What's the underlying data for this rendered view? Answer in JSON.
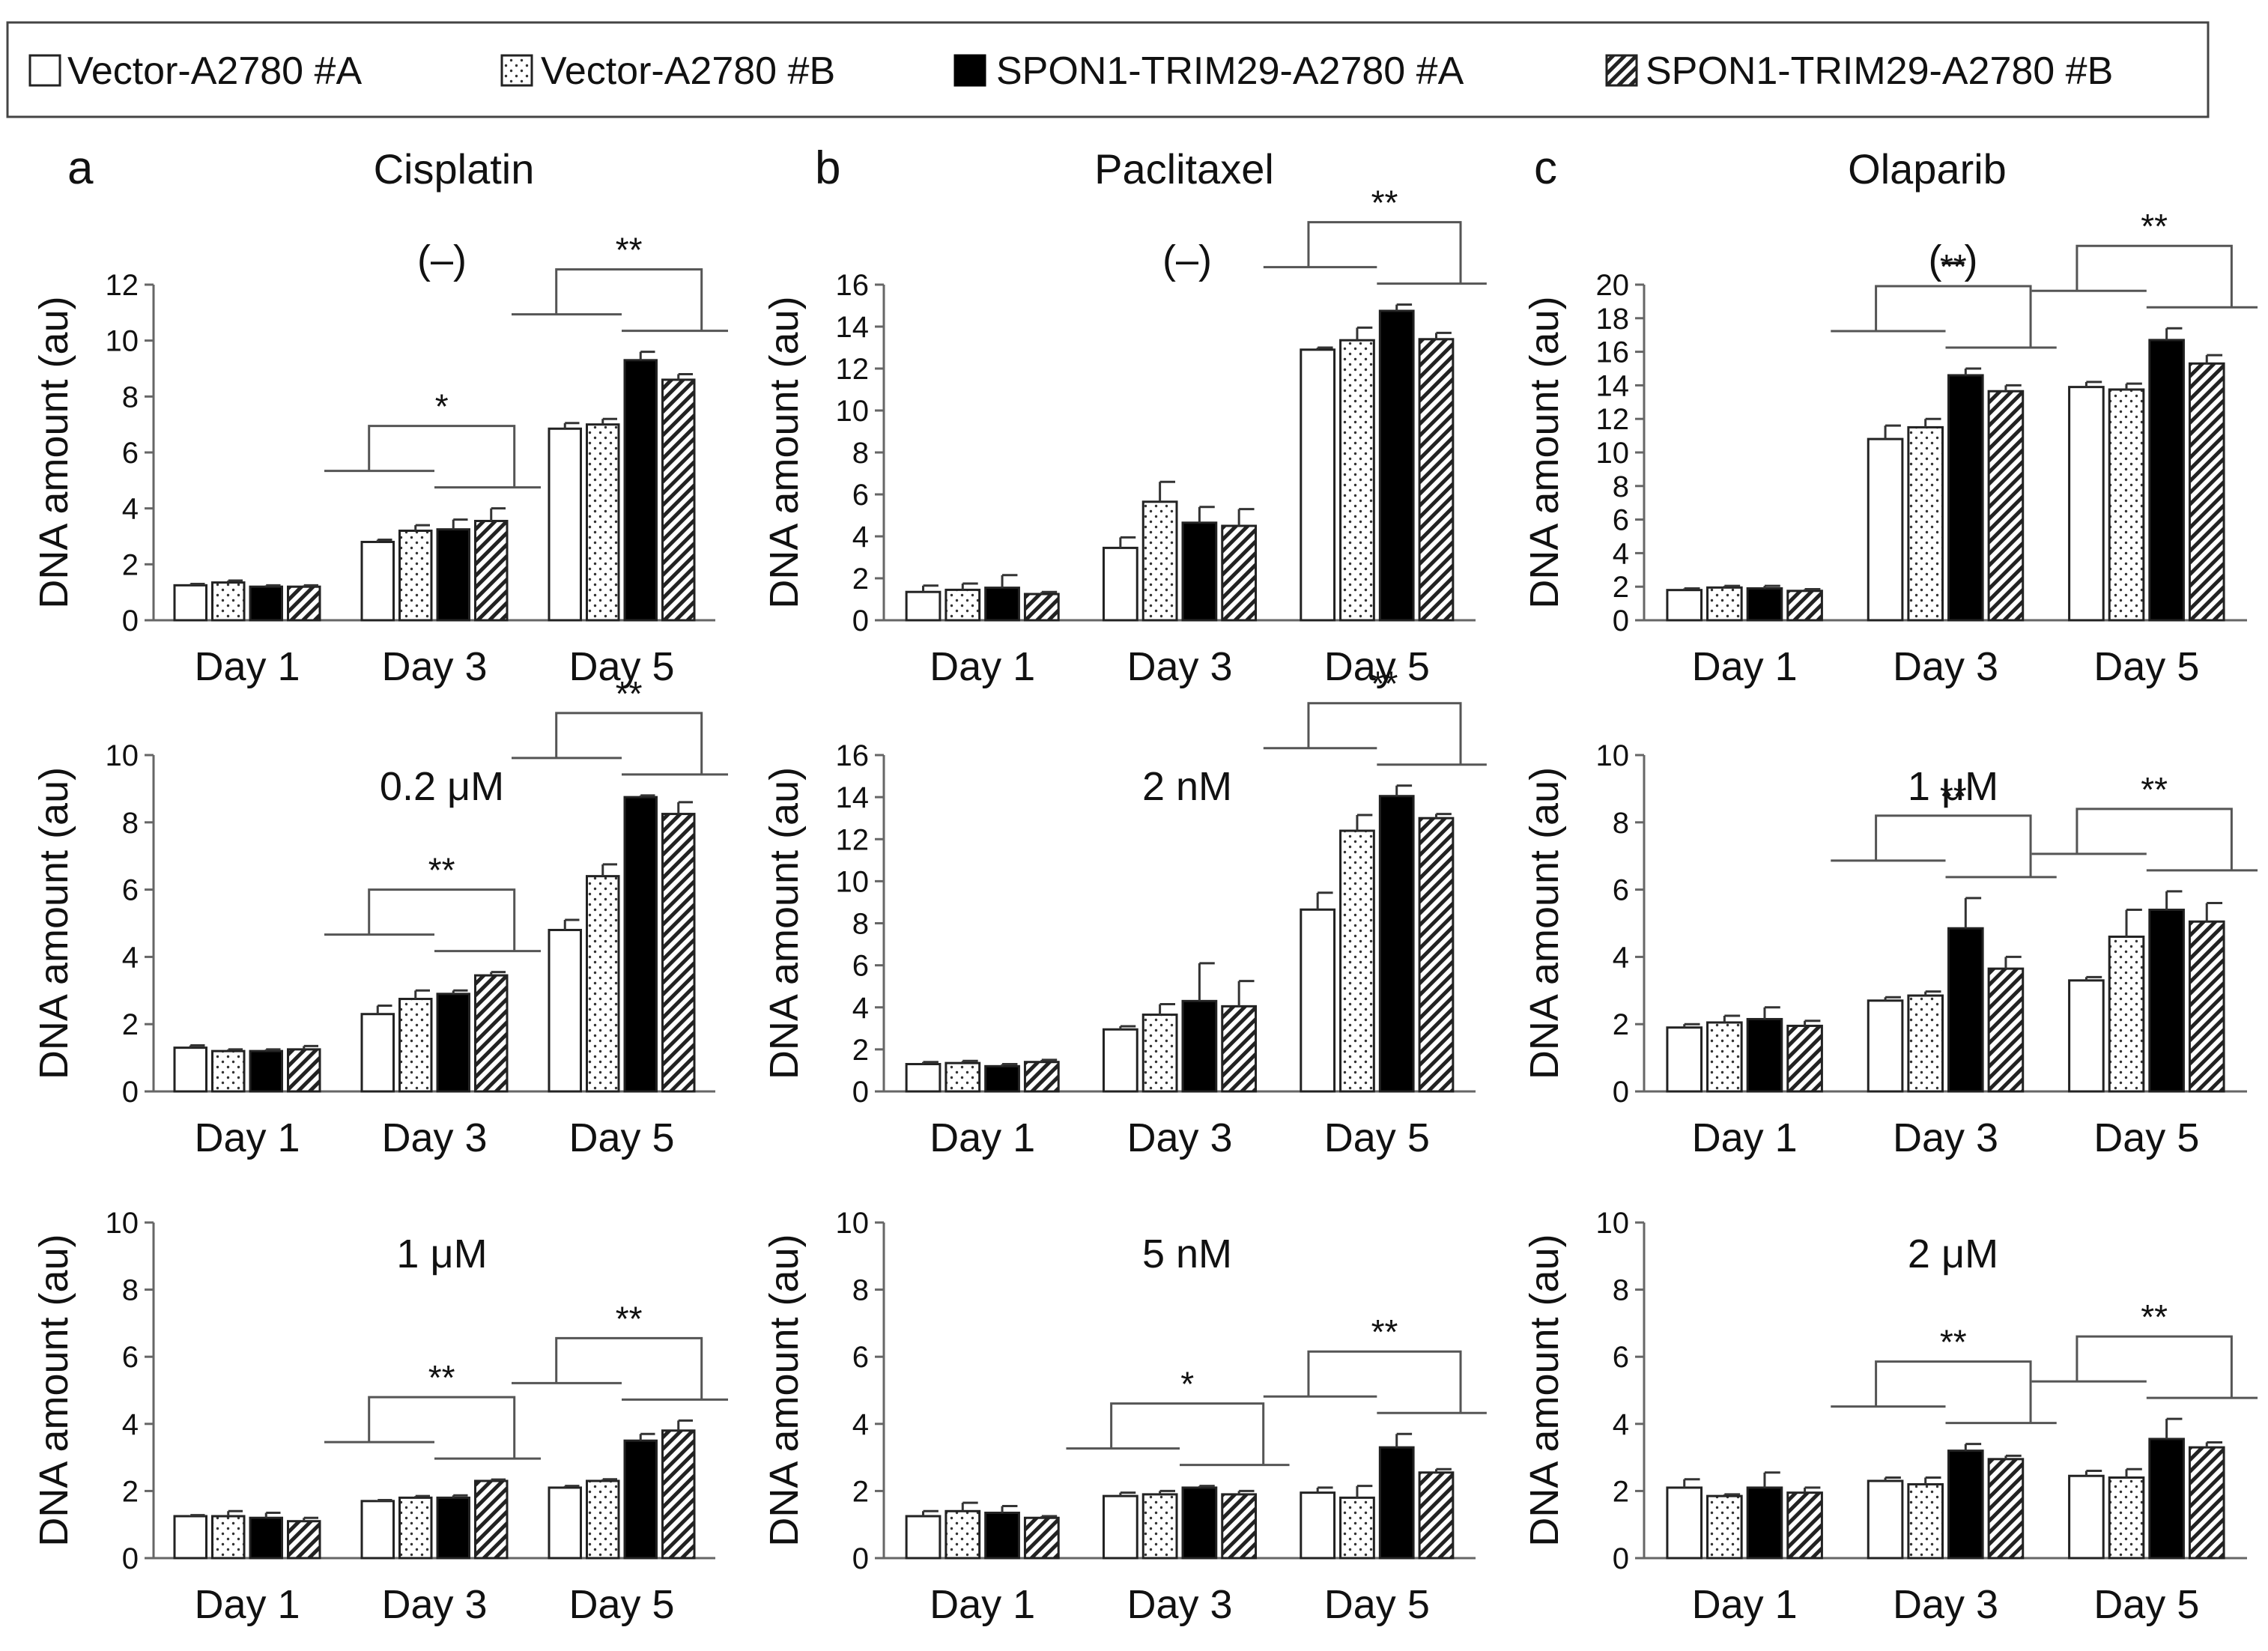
{
  "legend": {
    "items": [
      {
        "label": "Vector-A2780 #A",
        "pattern": "white"
      },
      {
        "label": "Vector-A2780 #B",
        "pattern": "dots"
      },
      {
        "label": "SPON1-TRIM29-A2780 #A",
        "pattern": "black"
      },
      {
        "label": "SPON1-TRIM29-A2780 #B",
        "pattern": "hatch"
      }
    ]
  },
  "columns": [
    {
      "letter": "a",
      "drug": "Cisplatin"
    },
    {
      "letter": "b",
      "drug": "Paclitaxel"
    },
    {
      "letter": "c",
      "drug": "Olaparib"
    }
  ],
  "ylabel": "DNA amount (au)",
  "categories": [
    "Day 1",
    "Day 3",
    "Day 5"
  ],
  "colors": {
    "bar_black": "#000000",
    "bar_white": "#ffffff",
    "line": "#555555",
    "axis": "#666666"
  },
  "chart_data": [
    {
      "type": "bar",
      "col": 0,
      "row": 0,
      "title": "(–)",
      "ylim": [
        0,
        12
      ],
      "ystep": 2,
      "series": [
        {
          "name": "Vector-A2780 #A",
          "values": [
            1.25,
            2.8,
            6.85
          ],
          "errors": [
            0.05,
            0.08,
            0.2
          ]
        },
        {
          "name": "Vector-A2780 #B",
          "values": [
            1.35,
            3.2,
            7.0
          ],
          "errors": [
            0.07,
            0.2,
            0.2
          ]
        },
        {
          "name": "SPON1-TRIM29-A2780 #A",
          "values": [
            1.2,
            3.25,
            9.3
          ],
          "errors": [
            0.05,
            0.35,
            0.3
          ]
        },
        {
          "name": "SPON1-TRIM29-A2780 #B",
          "values": [
            1.2,
            3.55,
            8.6
          ],
          "errors": [
            0.05,
            0.45,
            0.2
          ]
        }
      ],
      "significance": [
        {
          "day": 1,
          "stars": "*"
        },
        {
          "day": 2,
          "stars": "**"
        }
      ]
    },
    {
      "type": "bar",
      "col": 1,
      "row": 0,
      "title": "(–)",
      "ylim": [
        0,
        16
      ],
      "ystep": 2,
      "series": [
        {
          "name": "Vector-A2780 #A",
          "values": [
            1.35,
            3.45,
            12.9
          ],
          "errors": [
            0.3,
            0.5,
            0.1
          ]
        },
        {
          "name": "Vector-A2780 #B",
          "values": [
            1.45,
            5.65,
            13.35
          ],
          "errors": [
            0.3,
            0.95,
            0.6
          ]
        },
        {
          "name": "SPON1-TRIM29-A2780 #A",
          "values": [
            1.55,
            4.65,
            14.75
          ],
          "errors": [
            0.6,
            0.75,
            0.3
          ]
        },
        {
          "name": "SPON1-TRIM29-A2780 #B",
          "values": [
            1.25,
            4.5,
            13.4
          ],
          "errors": [
            0.1,
            0.8,
            0.3
          ]
        }
      ],
      "significance": [
        {
          "day": 2,
          "stars": "**"
        }
      ]
    },
    {
      "type": "bar",
      "col": 2,
      "row": 0,
      "title": "(–)",
      "ylim": [
        0,
        20
      ],
      "ystep": 2,
      "series": [
        {
          "name": "Vector-A2780 #A",
          "values": [
            1.8,
            10.8,
            13.9
          ],
          "errors": [
            0.1,
            0.8,
            0.3
          ]
        },
        {
          "name": "Vector-A2780 #B",
          "values": [
            1.95,
            11.5,
            13.75
          ],
          "errors": [
            0.1,
            0.5,
            0.35
          ]
        },
        {
          "name": "SPON1-TRIM29-A2780 #A",
          "values": [
            1.9,
            14.6,
            16.7
          ],
          "errors": [
            0.15,
            0.4,
            0.7
          ]
        },
        {
          "name": "SPON1-TRIM29-A2780 #B",
          "values": [
            1.75,
            13.65,
            15.3
          ],
          "errors": [
            0.1,
            0.35,
            0.5
          ]
        }
      ],
      "significance": [
        {
          "day": 1,
          "stars": "**"
        },
        {
          "day": 2,
          "stars": "**"
        }
      ]
    },
    {
      "type": "bar",
      "col": 0,
      "row": 1,
      "title": "0.2 μM",
      "ylim": [
        0,
        10
      ],
      "ystep": 2,
      "series": [
        {
          "name": "Vector-A2780 #A",
          "values": [
            1.3,
            2.3,
            4.8
          ],
          "errors": [
            0.07,
            0.25,
            0.3
          ]
        },
        {
          "name": "Vector-A2780 #B",
          "values": [
            1.2,
            2.75,
            6.4
          ],
          "errors": [
            0.05,
            0.25,
            0.35
          ]
        },
        {
          "name": "SPON1-TRIM29-A2780 #A",
          "values": [
            1.2,
            2.9,
            8.75
          ],
          "errors": [
            0.05,
            0.1,
            0.05
          ]
        },
        {
          "name": "SPON1-TRIM29-A2780 #B",
          "values": [
            1.25,
            3.45,
            8.25
          ],
          "errors": [
            0.1,
            0.1,
            0.35
          ]
        }
      ],
      "significance": [
        {
          "day": 1,
          "stars": "**"
        },
        {
          "day": 2,
          "stars": "**"
        }
      ]
    },
    {
      "type": "bar",
      "col": 1,
      "row": 1,
      "title": "2 nM",
      "ylim": [
        0,
        16
      ],
      "ystep": 2,
      "series": [
        {
          "name": "Vector-A2780 #A",
          "values": [
            1.3,
            2.95,
            8.65
          ],
          "errors": [
            0.1,
            0.15,
            0.8
          ]
        },
        {
          "name": "Vector-A2780 #B",
          "values": [
            1.35,
            3.65,
            12.4
          ],
          "errors": [
            0.1,
            0.5,
            0.75
          ]
        },
        {
          "name": "SPON1-TRIM29-A2780 #A",
          "values": [
            1.2,
            4.3,
            14.05
          ],
          "errors": [
            0.1,
            1.8,
            0.5
          ]
        },
        {
          "name": "SPON1-TRIM29-A2780 #B",
          "values": [
            1.4,
            4.05,
            13.0
          ],
          "errors": [
            0.1,
            1.2,
            0.2
          ]
        }
      ],
      "significance": [
        {
          "day": 2,
          "stars": "**"
        }
      ]
    },
    {
      "type": "bar",
      "col": 2,
      "row": 1,
      "title": "1 μM",
      "ylim": [
        0,
        10
      ],
      "ystep": 2,
      "series": [
        {
          "name": "Vector-A2780 #A",
          "values": [
            1.9,
            2.7,
            3.3
          ],
          "errors": [
            0.1,
            0.1,
            0.1
          ]
        },
        {
          "name": "Vector-A2780 #B",
          "values": [
            2.05,
            2.85,
            4.6
          ],
          "errors": [
            0.2,
            0.12,
            0.8
          ]
        },
        {
          "name": "SPON1-TRIM29-A2780 #A",
          "values": [
            2.15,
            4.85,
            5.4
          ],
          "errors": [
            0.35,
            0.9,
            0.55
          ]
        },
        {
          "name": "SPON1-TRIM29-A2780 #B",
          "values": [
            1.95,
            3.65,
            5.05
          ],
          "errors": [
            0.15,
            0.35,
            0.55
          ]
        }
      ],
      "significance": [
        {
          "day": 1,
          "stars": "**"
        },
        {
          "day": 2,
          "stars": "**"
        }
      ]
    },
    {
      "type": "bar",
      "col": 0,
      "row": 2,
      "title": "1 μM",
      "ylim": [
        0,
        10
      ],
      "ystep": 2,
      "series": [
        {
          "name": "Vector-A2780 #A",
          "values": [
            1.25,
            1.7,
            2.1
          ],
          "errors": [
            0.03,
            0.03,
            0.05
          ]
        },
        {
          "name": "Vector-A2780 #B",
          "values": [
            1.25,
            1.8,
            2.3
          ],
          "errors": [
            0.15,
            0.05,
            0.05
          ]
        },
        {
          "name": "SPON1-TRIM29-A2780 #A",
          "values": [
            1.2,
            1.8,
            3.5
          ],
          "errors": [
            0.15,
            0.07,
            0.2
          ]
        },
        {
          "name": "SPON1-TRIM29-A2780 #B",
          "values": [
            1.1,
            2.3,
            3.8
          ],
          "errors": [
            0.1,
            0.04,
            0.3
          ]
        }
      ],
      "significance": [
        {
          "day": 1,
          "stars": "**"
        },
        {
          "day": 2,
          "stars": "**"
        }
      ]
    },
    {
      "type": "bar",
      "col": 1,
      "row": 2,
      "title": "5 nM",
      "ylim": [
        0,
        10
      ],
      "ystep": 2,
      "series": [
        {
          "name": "Vector-A2780 #A",
          "values": [
            1.25,
            1.85,
            1.95
          ],
          "errors": [
            0.15,
            0.1,
            0.15
          ]
        },
        {
          "name": "Vector-A2780 #B",
          "values": [
            1.4,
            1.9,
            1.8
          ],
          "errors": [
            0.25,
            0.1,
            0.35
          ]
        },
        {
          "name": "SPON1-TRIM29-A2780 #A",
          "values": [
            1.35,
            2.1,
            3.3
          ],
          "errors": [
            0.2,
            0.05,
            0.4
          ]
        },
        {
          "name": "SPON1-TRIM29-A2780 #B",
          "values": [
            1.2,
            1.9,
            2.55
          ],
          "errors": [
            0.05,
            0.1,
            0.1
          ]
        }
      ],
      "significance": [
        {
          "day": 1,
          "stars": "*"
        },
        {
          "day": 2,
          "stars": "**"
        }
      ]
    },
    {
      "type": "bar",
      "col": 2,
      "row": 2,
      "title": "2 μM",
      "ylim": [
        0,
        10
      ],
      "ystep": 2,
      "series": [
        {
          "name": "Vector-A2780 #A",
          "values": [
            2.1,
            2.3,
            2.45
          ],
          "errors": [
            0.25,
            0.1,
            0.15
          ]
        },
        {
          "name": "Vector-A2780 #B",
          "values": [
            1.85,
            2.2,
            2.4
          ],
          "errors": [
            0.05,
            0.2,
            0.25
          ]
        },
        {
          "name": "SPON1-TRIM29-A2780 #A",
          "values": [
            2.1,
            3.2,
            3.55
          ],
          "errors": [
            0.45,
            0.2,
            0.6
          ]
        },
        {
          "name": "SPON1-TRIM29-A2780 #B",
          "values": [
            1.95,
            2.95,
            3.3
          ],
          "errors": [
            0.15,
            0.1,
            0.15
          ]
        }
      ],
      "significance": [
        {
          "day": 1,
          "stars": "**"
        },
        {
          "day": 2,
          "stars": "**"
        }
      ]
    }
  ]
}
